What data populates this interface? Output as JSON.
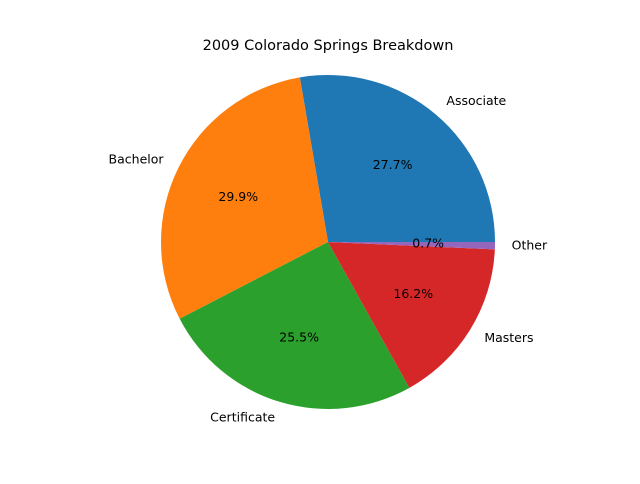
{
  "chart_data": {
    "type": "pie",
    "title": "2009 Colorado Springs Breakdown",
    "slices": [
      {
        "label": "Associate",
        "value": 27.7,
        "pct_label": "27.7%",
        "color": "#1f77b4"
      },
      {
        "label": "Bachelor",
        "value": 29.9,
        "pct_label": "29.9%",
        "color": "#ff7f0e"
      },
      {
        "label": "Certificate",
        "value": 25.5,
        "pct_label": "25.5%",
        "color": "#2ca02c"
      },
      {
        "label": "Masters",
        "value": 16.2,
        "pct_label": "16.2%",
        "color": "#d62728"
      },
      {
        "label": "Other",
        "value": 0.7,
        "pct_label": "0.7%",
        "color": "#9467bd"
      }
    ],
    "start_angle_deg": 0,
    "direction": "counterclockwise",
    "legend": "none"
  }
}
